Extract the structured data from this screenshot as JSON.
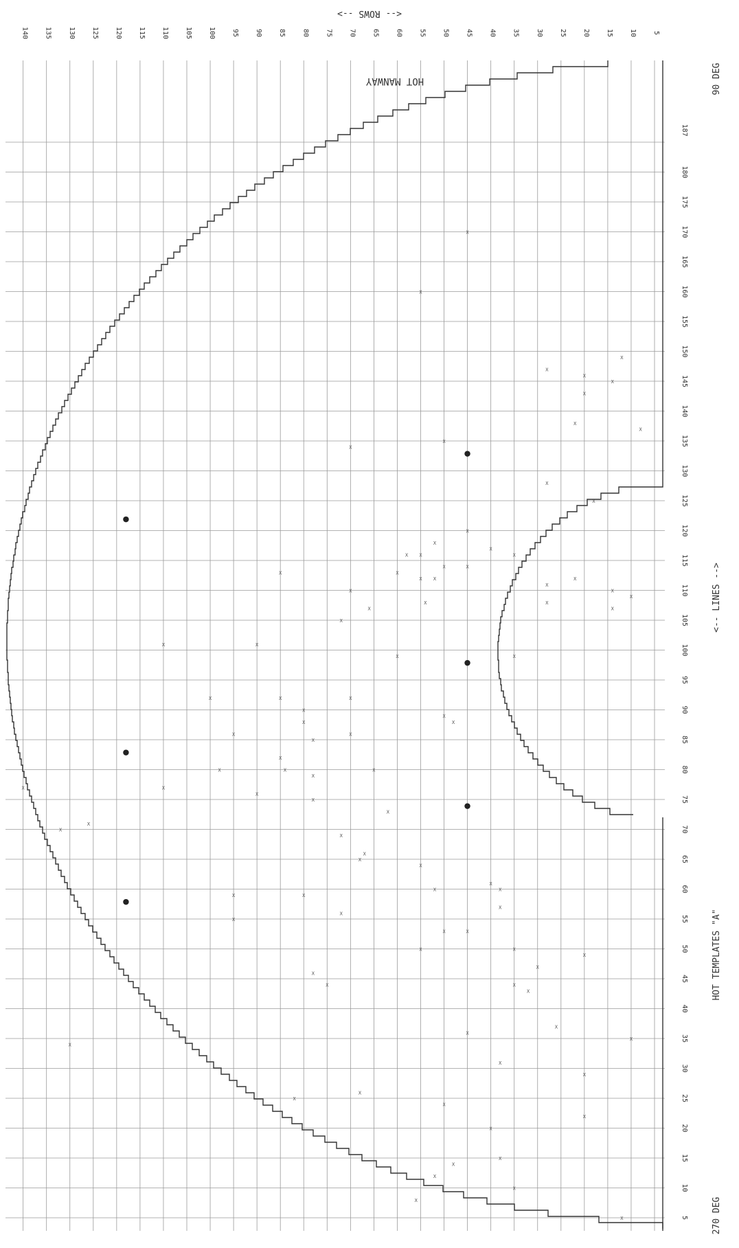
{
  "header": {
    "rows_arrow_label": "<--   ROWS   -->",
    "map_title": "HOT MANWAY"
  },
  "footer": {
    "left_angle": "270 DEG",
    "subtitle": "HOT TEMPLATES \"A\"",
    "lines_arrow_label": "<--   LINES   -->",
    "right_angle": "90 DEG"
  },
  "axes": {
    "row_labels": [
      "5",
      "10",
      "15",
      "20",
      "25",
      "30",
      "35",
      "40",
      "45",
      "50",
      "55",
      "60",
      "65",
      "70",
      "75",
      "80",
      "85",
      "90",
      "95",
      "100",
      "105",
      "110",
      "115",
      "120",
      "125",
      "130",
      "135",
      "140"
    ],
    "line_labels": [
      "5",
      "10",
      "15",
      "20",
      "25",
      "30",
      "35",
      "40",
      "45",
      "50",
      "55",
      "60",
      "65",
      "70",
      "75",
      "80",
      "85",
      "90",
      "95",
      "100",
      "105",
      "110",
      "115",
      "120",
      "125",
      "130",
      "135",
      "140",
      "145",
      "150",
      "155",
      "160",
      "165",
      "170",
      "175",
      "180",
      "187"
    ]
  },
  "marks": {
    "tube_mark": "X",
    "plug_mark": "●"
  },
  "colors": {
    "grid": "#9a9a9a",
    "outline": "#333333",
    "text": "#333333",
    "mark": "#555555",
    "plug": "#222222"
  }
}
